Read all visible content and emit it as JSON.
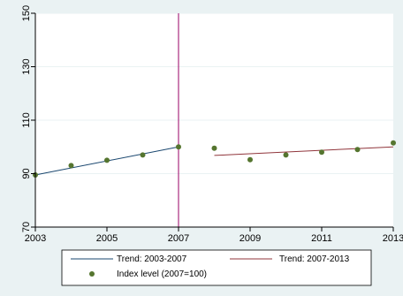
{
  "chart_data": {
    "type": "line",
    "title": "",
    "xlabel": "",
    "ylabel": "",
    "xlim": [
      2003,
      2013
    ],
    "ylim": [
      70,
      150
    ],
    "x_ticks": [
      2003,
      2005,
      2007,
      2009,
      2011,
      2013
    ],
    "y_ticks": [
      70,
      90,
      110,
      130,
      150
    ],
    "vertical_line": {
      "x": 2007,
      "color": "#990066"
    },
    "series": [
      {
        "name": "Trend: 2003-2007",
        "kind": "line",
        "color": "#1a476f",
        "x": [
          2003,
          2007
        ],
        "y": [
          89.5,
          100
        ]
      },
      {
        "name": "Trend: 2007-2013",
        "kind": "line",
        "color": "#90353b",
        "x": [
          2008,
          2013
        ],
        "y": [
          96.8,
          100
        ]
      },
      {
        "name": "Index level (2007=100)",
        "kind": "scatter",
        "color": "#55752f",
        "x": [
          2003,
          2004,
          2005,
          2006,
          2007,
          2008,
          2009,
          2010,
          2011,
          2012,
          2013
        ],
        "y": [
          89.5,
          93,
          95,
          97,
          100,
          99.5,
          95.2,
          97,
          98,
          99,
          101.5
        ]
      }
    ],
    "legend": {
      "placement": "bottom",
      "entries": [
        "Trend: 2003-2007",
        "Trend: 2007-2013",
        "Index level (2007=100)"
      ]
    },
    "colors": {
      "background": "#eaf2f3",
      "plot_background": "#ffffff",
      "axis": "#000000"
    }
  }
}
